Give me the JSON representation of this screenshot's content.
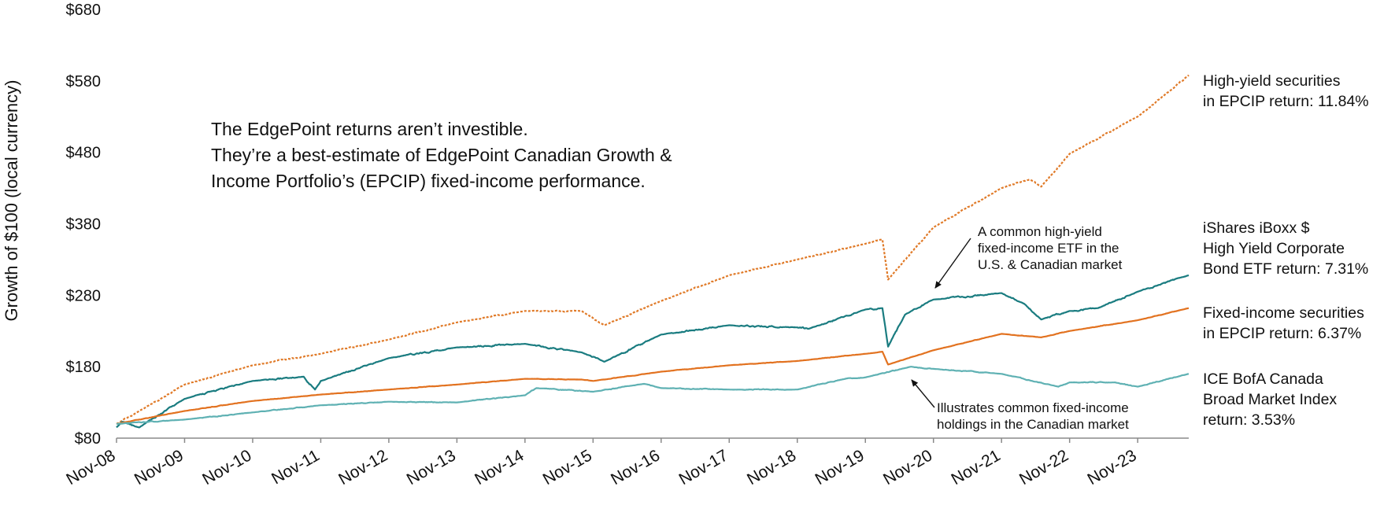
{
  "chart_data": {
    "type": "line",
    "ylabel": "Growth of $100 (local currency)",
    "ylim": [
      80,
      680
    ],
    "yticks": [
      "$80",
      "$180",
      "$280",
      "$380",
      "$480",
      "$580",
      "$680"
    ],
    "x_tick_labels": [
      "Nov-08",
      "Nov-09",
      "Nov-10",
      "Nov-11",
      "Nov-12",
      "Nov-13",
      "Nov-14",
      "Nov-15",
      "Nov-16",
      "Nov-17",
      "Nov-18",
      "Nov-19",
      "Nov-20",
      "Nov-21",
      "Nov-22",
      "Nov-23"
    ],
    "note": [
      "The EdgePoint returns aren’t investible.",
      "They’re a best-estimate of EdgePoint Canadian Growth &",
      "Income Portfolio’s (EPCIP) fixed-income performance."
    ],
    "callouts": {
      "hy_etf": [
        "A common high-yield",
        "fixed-income ETF in the",
        "U.S. & Canadian market"
      ],
      "canada_index": [
        "Illustrates common fixed-income",
        "holdings in the Canadian market"
      ]
    },
    "series": [
      {
        "name": "High-yield securities in EPCIP",
        "label_lines": [
          "High-yield securities",
          "in EPCIP return: 11.84%"
        ],
        "color": "#e07a28",
        "dashed": true,
        "points": [
          [
            "Nov-08",
            100
          ],
          [
            "Mar-09",
            118
          ],
          [
            "Nov-09",
            155
          ],
          [
            "Nov-10",
            182
          ],
          [
            "Nov-11",
            198
          ],
          [
            "Nov-12",
            218
          ],
          [
            "Nov-13",
            242
          ],
          [
            "Nov-14",
            258
          ],
          [
            "Sep-15",
            258
          ],
          [
            "Jan-16",
            238
          ],
          [
            "Nov-16",
            272
          ],
          [
            "Nov-17",
            308
          ],
          [
            "Nov-18",
            330
          ],
          [
            "Nov-19",
            352
          ],
          [
            "Feb-20",
            358
          ],
          [
            "Mar-20",
            302
          ],
          [
            "Nov-20",
            375
          ],
          [
            "Nov-21",
            430
          ],
          [
            "Apr-22",
            442
          ],
          [
            "Jun-22",
            432
          ],
          [
            "Nov-22",
            478
          ],
          [
            "Nov-23",
            530
          ],
          [
            "May-24",
            568
          ],
          [
            "Aug-24",
            588
          ]
        ]
      },
      {
        "name": "iShares iBoxx $ High Yield Corporate Bond ETF",
        "label_lines": [
          "iShares iBoxx $",
          "High Yield Corporate",
          "Bond ETF return: 7.31%"
        ],
        "color": "#1a7c80",
        "dashed": false,
        "points": [
          [
            "Nov-08",
            95
          ],
          [
            "Dec-08",
            103
          ],
          [
            "Mar-09",
            95
          ],
          [
            "Nov-09",
            135
          ],
          [
            "Nov-10",
            160
          ],
          [
            "Aug-11",
            166
          ],
          [
            "Oct-11",
            148
          ],
          [
            "Nov-11",
            160
          ],
          [
            "Nov-12",
            192
          ],
          [
            "Nov-13",
            207
          ],
          [
            "Nov-14",
            212
          ],
          [
            "Sep-15",
            200
          ],
          [
            "Jan-16",
            187
          ],
          [
            "Nov-16",
            225
          ],
          [
            "Nov-17",
            238
          ],
          [
            "Nov-18",
            235
          ],
          [
            "Jan-19",
            233
          ],
          [
            "Nov-19",
            260
          ],
          [
            "Feb-20",
            262
          ],
          [
            "Mar-20",
            208
          ],
          [
            "Jun-20",
            253
          ],
          [
            "Nov-20",
            274
          ],
          [
            "Nov-21",
            283
          ],
          [
            "Mar-22",
            268
          ],
          [
            "Jun-22",
            246
          ],
          [
            "Nov-22",
            258
          ],
          [
            "Apr-23",
            262
          ],
          [
            "Nov-23",
            285
          ],
          [
            "Aug-24",
            308
          ]
        ]
      },
      {
        "name": "Fixed-income securities in EPCIP",
        "label_lines": [
          "Fixed-income securities",
          "in EPCIP return: 6.37%"
        ],
        "color": "#e27220",
        "dashed": false,
        "points": [
          [
            "Nov-08",
            100
          ],
          [
            "Nov-09",
            118
          ],
          [
            "Nov-10",
            132
          ],
          [
            "Nov-11",
            141
          ],
          [
            "Nov-12",
            148
          ],
          [
            "Nov-13",
            155
          ],
          [
            "Nov-14",
            163
          ],
          [
            "Sep-15",
            162
          ],
          [
            "Nov-15",
            160
          ],
          [
            "Nov-16",
            173
          ],
          [
            "Nov-17",
            182
          ],
          [
            "Nov-18",
            188
          ],
          [
            "Nov-19",
            198
          ],
          [
            "Feb-20",
            201
          ],
          [
            "Mar-20",
            183
          ],
          [
            "Nov-20",
            203
          ],
          [
            "Nov-21",
            226
          ],
          [
            "Jun-22",
            221
          ],
          [
            "Nov-22",
            230
          ],
          [
            "Nov-23",
            245
          ],
          [
            "Aug-24",
            262
          ]
        ]
      },
      {
        "name": "ICE BofA Canada Broad Market Index",
        "label_lines": [
          "ICE BofA Canada",
          "Broad Market Index",
          "return: 3.53%"
        ],
        "color": "#5fb1b3",
        "dashed": false,
        "points": [
          [
            "Nov-08",
            100
          ],
          [
            "Nov-09",
            106
          ],
          [
            "Nov-10",
            116
          ],
          [
            "Nov-11",
            126
          ],
          [
            "Nov-12",
            131
          ],
          [
            "Nov-13",
            130
          ],
          [
            "Nov-14",
            140
          ],
          [
            "Jan-15",
            150
          ],
          [
            "Nov-15",
            145
          ],
          [
            "Aug-16",
            156
          ],
          [
            "Nov-16",
            150
          ],
          [
            "Nov-17",
            148
          ],
          [
            "Nov-18",
            148
          ],
          [
            "Aug-19",
            164
          ],
          [
            "Nov-19",
            165
          ],
          [
            "Jul-20",
            180
          ],
          [
            "Nov-20",
            177
          ],
          [
            "Nov-21",
            170
          ],
          [
            "Sep-22",
            152
          ],
          [
            "Nov-22",
            158
          ],
          [
            "Jul-23",
            158
          ],
          [
            "Nov-23",
            152
          ],
          [
            "Aug-24",
            170
          ]
        ]
      }
    ]
  }
}
